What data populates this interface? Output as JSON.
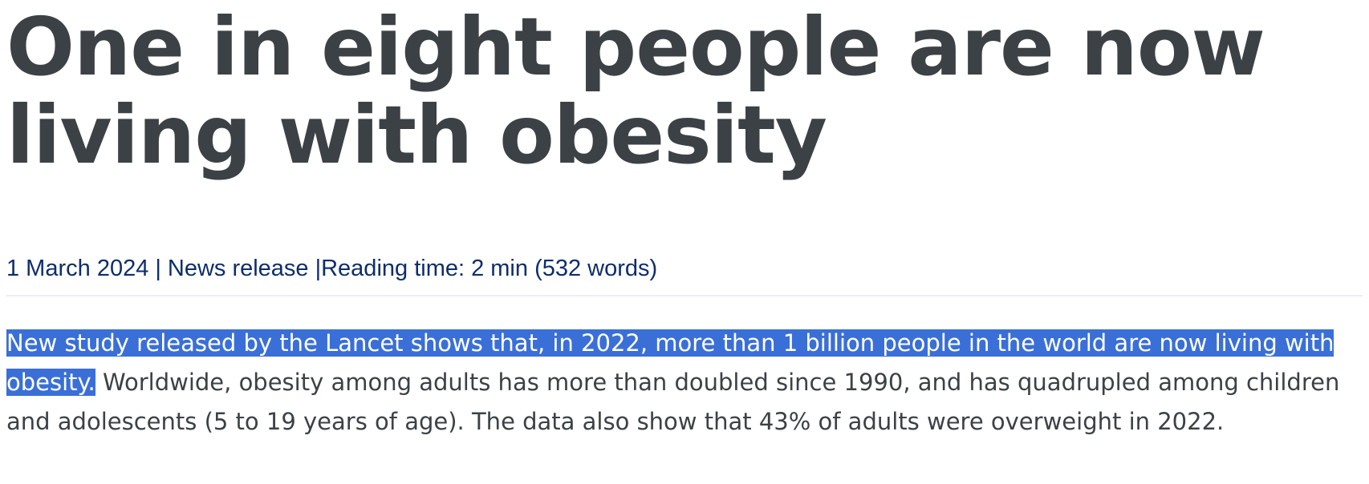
{
  "article": {
    "headline": "One in eight people are now living with obesity",
    "meta": {
      "date": "1 March 2024",
      "separator": "|",
      "type": "News release",
      "reading_time": "Reading time: 2 min (532 words)"
    },
    "lead": {
      "highlighted": "New study released by the Lancet shows that, in 2022, more than 1 billion people in the world are now living with obesity.",
      "rest": " Worldwide, obesity among adults has more than doubled since 1990, and has quadrupled among children and adolescents (5 to 19 years of age). The data also show that 43% of adults were overweight in 2022."
    }
  },
  "colors": {
    "headline_text": "#3c4146",
    "meta_text": "#0d2d6c",
    "selection_highlight": "#3a6fd8"
  }
}
